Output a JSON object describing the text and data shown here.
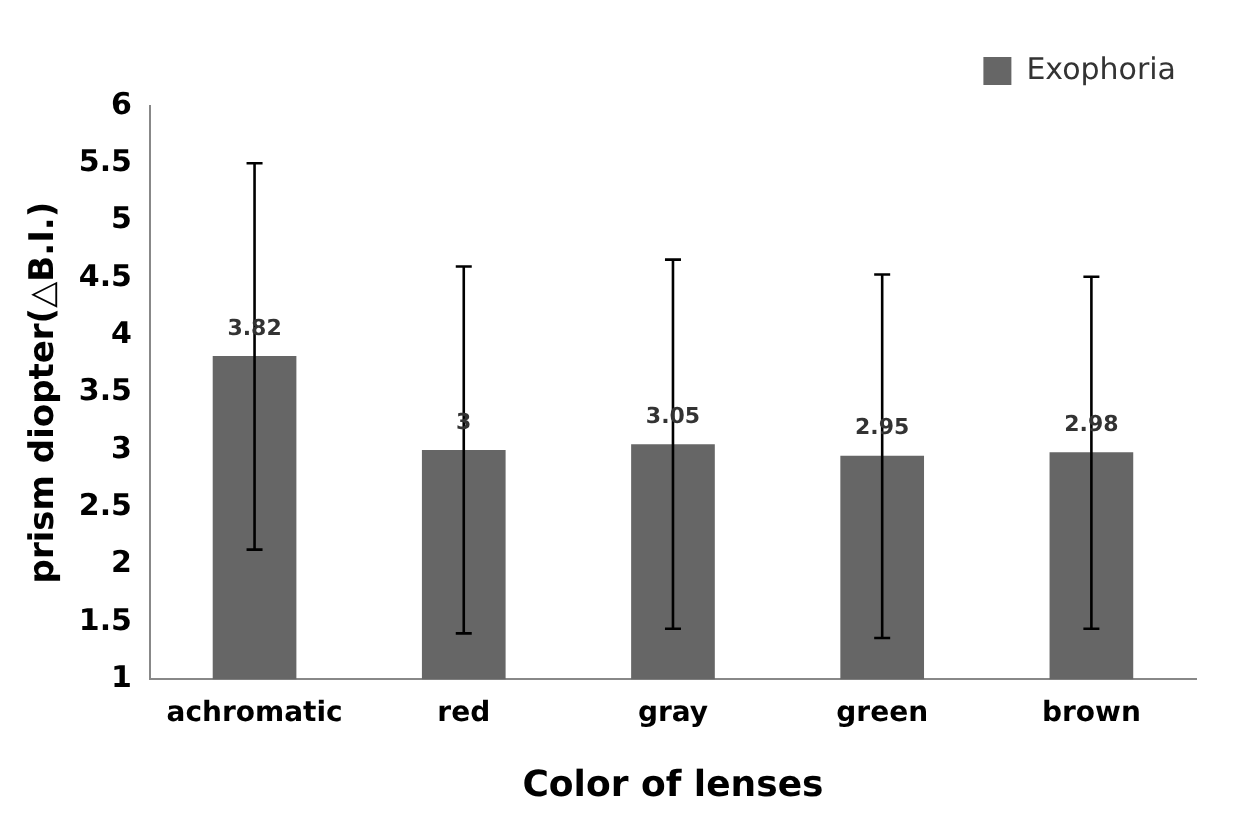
{
  "chart_data": {
    "type": "bar",
    "xlabel": "Color of lenses",
    "ylabel": "prism diopter(△B.I.)",
    "categories": [
      "achromatic",
      "red",
      "gray",
      "green",
      "brown"
    ],
    "series": [
      {
        "name": "Exophoria",
        "color": "#666666",
        "values": [
          3.82,
          3,
          3.05,
          2.95,
          2.98
        ],
        "errors": [
          [
            2.13,
            5.5
          ],
          [
            1.4,
            4.6
          ],
          [
            1.44,
            4.66
          ],
          [
            1.36,
            4.53
          ],
          [
            1.44,
            4.51
          ]
        ]
      }
    ],
    "ylim": [
      1,
      6
    ],
    "yticks": [
      1,
      1.5,
      2,
      2.5,
      3,
      3.5,
      4,
      4.5,
      5,
      5.5,
      6
    ],
    "grid": false,
    "legend": "top right",
    "data_labels": true
  }
}
